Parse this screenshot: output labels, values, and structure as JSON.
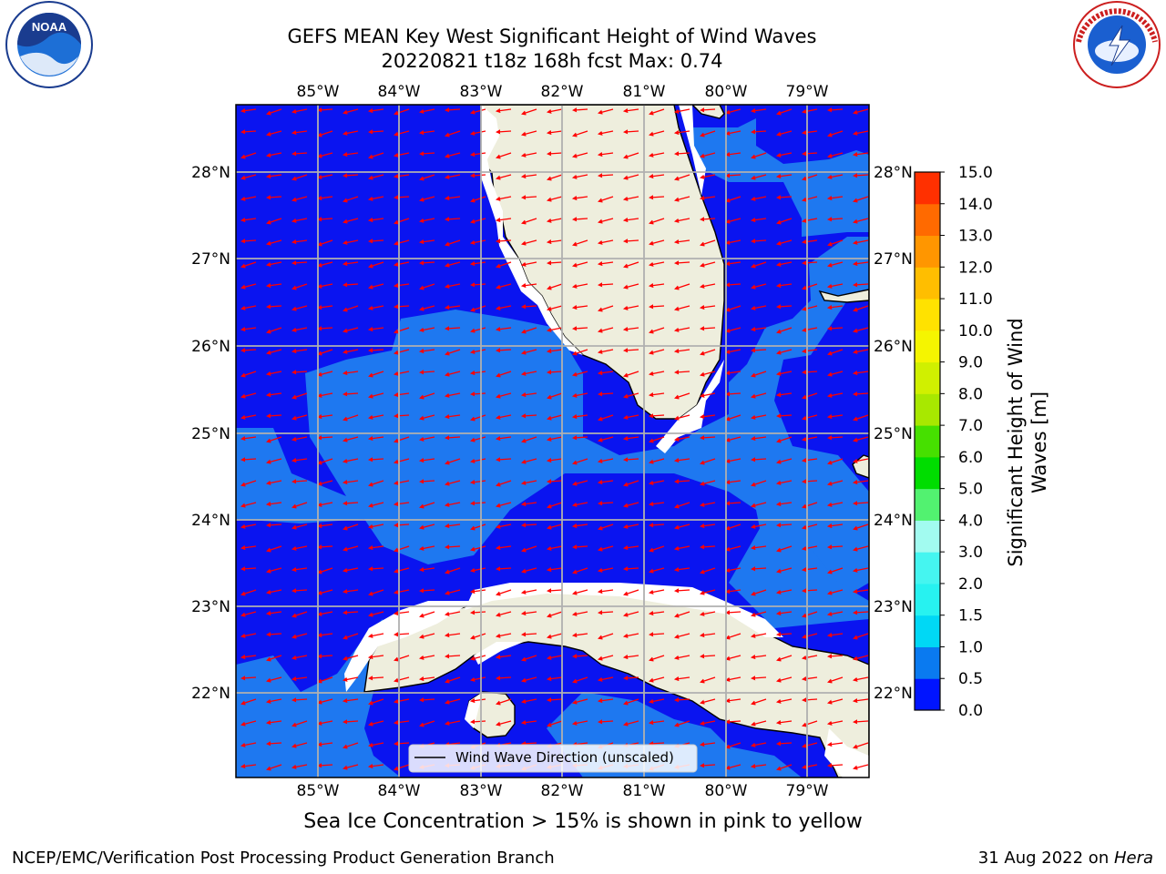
{
  "title": {
    "line1": "GEFS MEAN Key West Significant Height of Wind Waves",
    "line2": "20220821 t18z 168h fcst   Max: 0.74"
  },
  "map": {
    "lon_labels": [
      "85°W",
      "84°W",
      "83°W",
      "82°W",
      "81°W",
      "80°W",
      "79°W"
    ],
    "lat_labels": [
      "28°N",
      "27°N",
      "26°N",
      "25°N",
      "24°N",
      "23°N",
      "22°N"
    ],
    "colors": {
      "land": "#eeeedd",
      "wave_0_0_5": "#0a14f0",
      "wave_0_5_1_0": "#1e78f0",
      "arrow": "#ff0000",
      "grid": "#b0b0b0"
    }
  },
  "legend": {
    "label": "Wind Wave Direction (unscaled)"
  },
  "colorbar": {
    "label_line1": "Significant Height of Wind",
    "label_line2": "Waves [m]",
    "ticks": [
      "0.0",
      "0.5",
      "1.0",
      "1.5",
      "2.0",
      "3.0",
      "4.0",
      "5.0",
      "6.0",
      "7.0",
      "8.0",
      "9.0",
      "10.0",
      "11.0",
      "12.0",
      "13.0",
      "14.0",
      "15.0"
    ],
    "colors": [
      "#0014ff",
      "#0a7af0",
      "#00d8f5",
      "#27f2f0",
      "#45f5f0",
      "#a2fbf0",
      "#52f270",
      "#00dd00",
      "#46e000",
      "#a8e800",
      "#d0f000",
      "#f5f500",
      "#ffe200",
      "#ffbe00",
      "#ff9600",
      "#ff6a00",
      "#ff3000",
      "#ff0000"
    ]
  },
  "logos": {
    "left_text": "NOAA",
    "right_text": "NATIONAL WEATHER SERVICE"
  },
  "sea_ice_note": "Sea Ice Concentration > 15% is shown in pink to yellow",
  "footer": {
    "left": "NCEP/EMC/Verification Post Processing Product Generation Branch",
    "right_date": "31 Aug 2022 on ",
    "right_host": "Hera"
  }
}
